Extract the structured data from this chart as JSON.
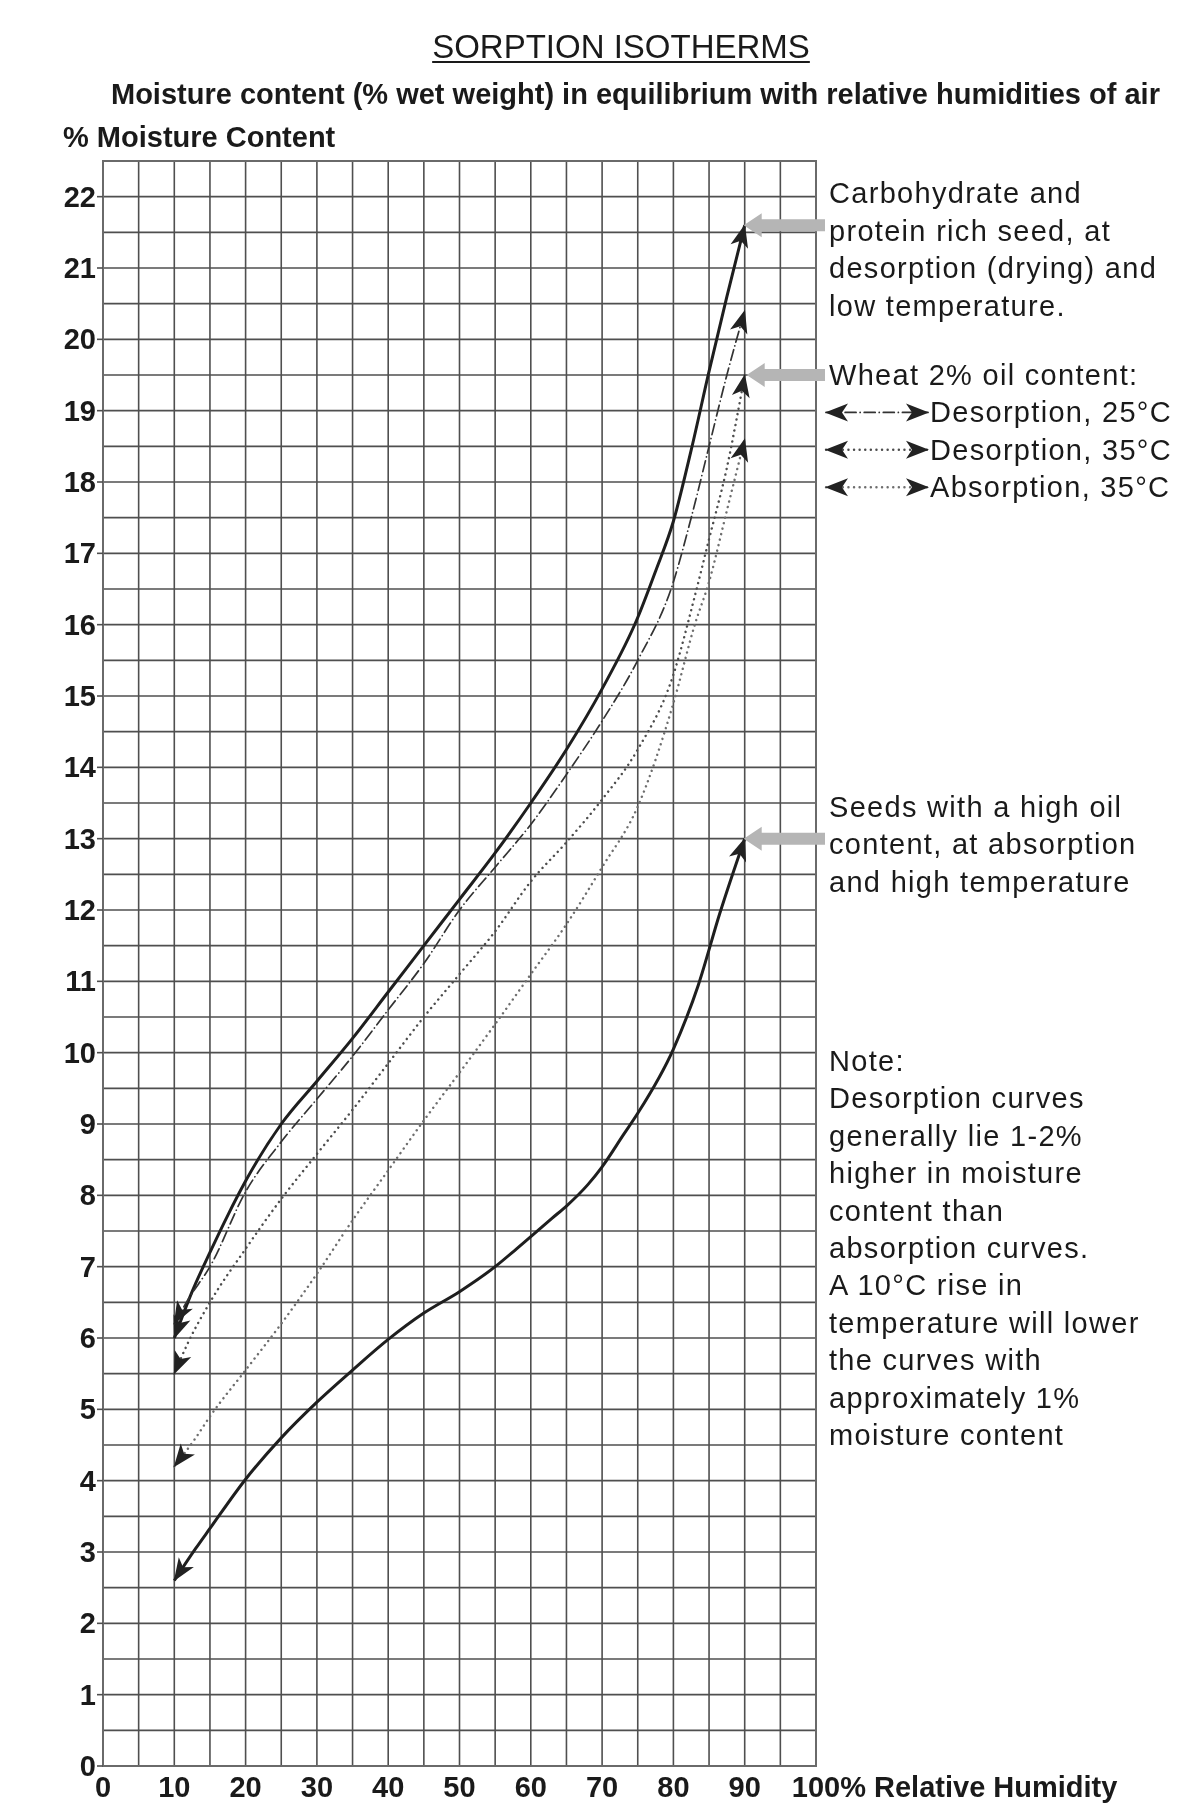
{
  "chart_data": {
    "type": "line",
    "title": "SORPTION ISOTHERMS",
    "subtitle": "Moisture content (% wet weight) in equilibrium with relative humidities of air",
    "xlabel": "% Relative Humidity",
    "ylabel": "% Moisture Content",
    "legend_title": "Wheat 2% oil content:",
    "legend": "right",
    "grid": true,
    "xlim": [
      0,
      100
    ],
    "ylim": [
      0,
      22.5
    ],
    "xticks": [
      0,
      {
        "value": 5,
        "label": null
      },
      10,
      {
        "value": 15,
        "label": null
      },
      20,
      {
        "value": 25,
        "label": null
      },
      30,
      {
        "value": 35,
        "label": null
      },
      40,
      {
        "value": 45,
        "label": null
      },
      50,
      {
        "value": 55,
        "label": null
      },
      60,
      {
        "value": 65,
        "label": null
      },
      70,
      {
        "value": 75,
        "label": null
      },
      80,
      {
        "value": 85,
        "label": null
      },
      90,
      {
        "value": 95,
        "label": null
      },
      100
    ],
    "yticks": [
      0,
      {
        "value": 0.5,
        "label": null
      },
      1,
      {
        "value": 1.5,
        "label": null
      },
      2,
      {
        "value": 2.5,
        "label": null
      },
      3,
      {
        "value": 3.5,
        "label": null
      },
      4,
      {
        "value": 4.5,
        "label": null
      },
      5,
      {
        "value": 5.5,
        "label": null
      },
      6,
      {
        "value": 6.5,
        "label": null
      },
      7,
      {
        "value": 7.5,
        "label": null
      },
      8,
      {
        "value": 8.5,
        "label": null
      },
      9,
      {
        "value": 9.5,
        "label": null
      },
      10,
      {
        "value": 10.5,
        "label": null
      },
      11,
      {
        "value": 11.5,
        "label": null
      },
      12,
      {
        "value": 12.5,
        "label": null
      },
      13,
      {
        "value": 13.5,
        "label": null
      },
      14,
      {
        "value": 14.5,
        "label": null
      },
      15,
      {
        "value": 15.5,
        "label": null
      },
      16,
      {
        "value": 16.5,
        "label": null
      },
      17,
      {
        "value": 17.5,
        "label": null
      },
      18,
      {
        "value": 18.5,
        "label": null
      },
      19,
      {
        "value": 19.5,
        "label": null
      },
      20,
      {
        "value": 20.5,
        "label": null
      },
      21,
      {
        "value": 21.5,
        "label": null
      },
      22,
      {
        "value": 22.5,
        "label": null
      }
    ],
    "series": [
      {
        "color": "#1e1e1e",
        "line_style": "solid",
        "x": [
          10,
          12.5,
          15,
          17.5,
          20,
          25,
          30,
          35,
          40,
          45,
          50,
          55,
          60,
          65,
          70,
          75,
          77.5,
          80,
          82.5,
          85,
          87.5,
          90
        ],
        "values": [
          6.0,
          6.65,
          7.2,
          7.72,
          8.2,
          9.0,
          9.6,
          10.2,
          10.85,
          11.5,
          12.15,
          12.8,
          13.5,
          14.25,
          15.1,
          16.1,
          16.75,
          17.45,
          18.45,
          19.55,
          20.6,
          21.6
        ]
      },
      {
        "name": "Desorption, 25°C",
        "color": "#333333",
        "line_style": "dashdot",
        "x": [
          10,
          12,
          15,
          20,
          25,
          30,
          35,
          40,
          45,
          50,
          55,
          60,
          65,
          70,
          75,
          80,
          82.5,
          85,
          87.5,
          90
        ],
        "values": [
          6.2,
          6.55,
          7.0,
          8.05,
          8.75,
          9.35,
          9.95,
          10.6,
          11.25,
          12.0,
          12.6,
          13.2,
          13.9,
          14.65,
          15.5,
          16.6,
          17.5,
          18.5,
          19.5,
          20.4
        ]
      },
      {
        "name": "Desorption, 35°C",
        "color": "#4d4d4d",
        "line_style": "dotted",
        "x": [
          10,
          12,
          15,
          20,
          25,
          30,
          35,
          40,
          45,
          50,
          55,
          60,
          65,
          70,
          75,
          80,
          83,
          85,
          87.5,
          90
        ],
        "values": [
          5.5,
          5.95,
          6.5,
          7.25,
          7.95,
          8.58,
          9.2,
          9.85,
          10.5,
          11.1,
          11.7,
          12.4,
          12.95,
          13.55,
          14.25,
          15.3,
          16.4,
          17.2,
          18.2,
          19.5
        ]
      },
      {
        "name": "Absorption, 35°C",
        "color": "#6e6e6e",
        "line_style": "dotted",
        "x": [
          10,
          13,
          15,
          20,
          25,
          30,
          35,
          40,
          45,
          50,
          55,
          60,
          65,
          70,
          75,
          80,
          83,
          85,
          87.5,
          90
        ],
        "values": [
          4.2,
          4.6,
          4.9,
          5.55,
          6.2,
          6.9,
          7.65,
          8.35,
          9.05,
          9.72,
          10.4,
          11.1,
          11.8,
          12.6,
          13.45,
          14.9,
          16.0,
          16.6,
          17.6,
          18.6
        ]
      },
      {
        "color": "#1e1e1e",
        "line_style": "solid",
        "x": [
          10,
          13,
          15,
          20,
          25,
          30,
          35,
          40,
          45,
          50,
          55,
          58,
          60,
          63,
          65,
          68,
          70,
          73,
          75,
          80,
          83.5,
          86.5,
          90
        ],
        "values": [
          2.6,
          3.05,
          3.33,
          4.02,
          4.6,
          5.1,
          5.55,
          5.98,
          6.35,
          6.65,
          7.0,
          7.25,
          7.42,
          7.68,
          7.85,
          8.15,
          8.4,
          8.85,
          9.15,
          10.05,
          10.95,
          11.95,
          13.0
        ]
      }
    ],
    "annotations": [
      {
        "text": "Carbohydrate and\nprotein rich seed, at\ndesorption (drying) and\nlow temperature.",
        "x": 90,
        "y": 21.6
      },
      {
        "text": "Seeds with a high oil\ncontent, at absorption\nand high temperature",
        "x": 90,
        "y": 13.0
      },
      "Note:\nDesorption curves\ngenerally lie 1-2%\nhigher in moisture\ncontent than\nabsorption curves.\nA 10°C rise in\ntemperature will lower\nthe curves with\napproximately 1%\nmoisture content"
    ]
  }
}
